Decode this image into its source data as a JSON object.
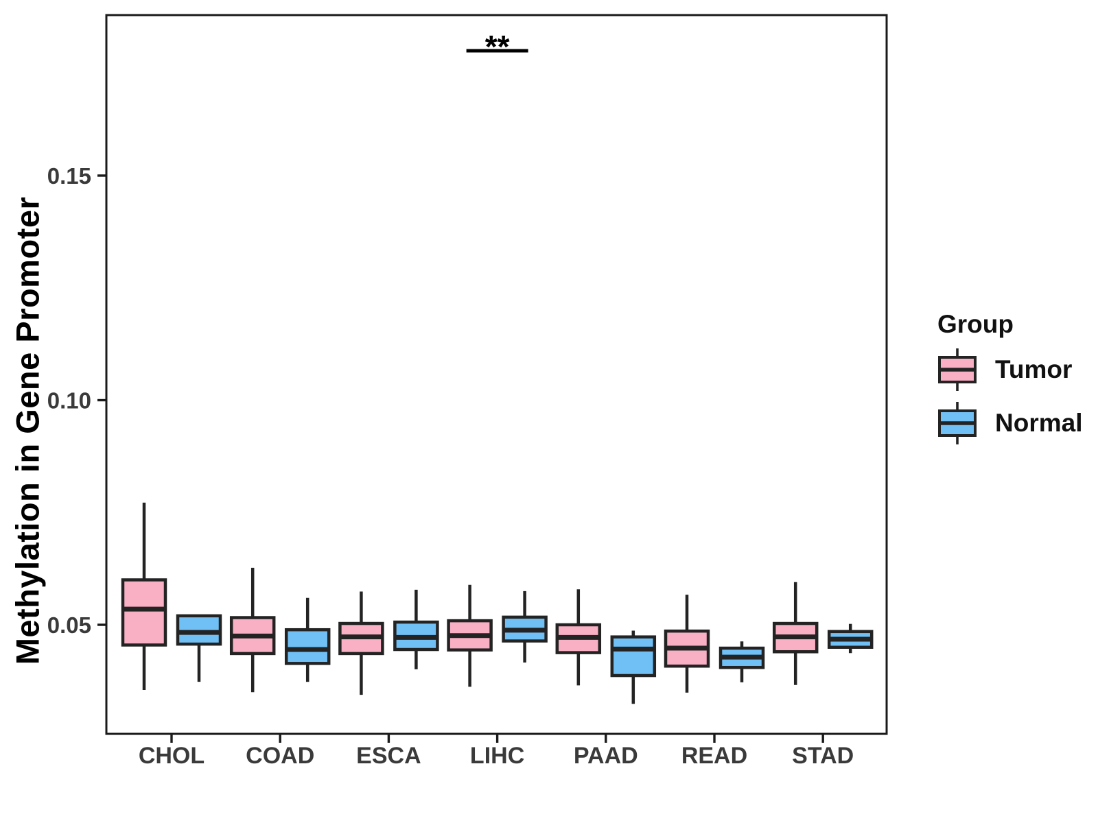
{
  "chart_data": {
    "type": "boxplot",
    "title": "",
    "ylabel": "Methylation in Gene Promoter",
    "xlabel": "",
    "categories": [
      "CHOL",
      "COAD",
      "ESCA",
      "LIHC",
      "PAAD",
      "READ",
      "STAD"
    ],
    "yticks": [
      0.05,
      0.1,
      0.15
    ],
    "ylim": [
      0.026,
      0.186
    ],
    "grid": false,
    "legend": {
      "title": "Group",
      "position": "right"
    },
    "significance": {
      "category": "LIHC",
      "label": "**"
    },
    "style": {
      "tumor_fill": "#F9AFC4",
      "normal_fill": "#70BFF5",
      "box_border": "#232323",
      "panel_border": "#1A1A1A",
      "axis_text": "#3A3A3A",
      "background": "#FFFFFF"
    },
    "series": [
      {
        "name": "Tumor",
        "color": "#F9AFC4",
        "boxes": [
          {
            "category": "CHOL",
            "whisker_low": 0.0355,
            "q1": 0.0455,
            "median": 0.0535,
            "q3": 0.06,
            "whisker_high": 0.0772
          },
          {
            "category": "COAD",
            "whisker_low": 0.035,
            "q1": 0.0436,
            "median": 0.0475,
            "q3": 0.0516,
            "whisker_high": 0.0627
          },
          {
            "category": "ESCA",
            "whisker_low": 0.0344,
            "q1": 0.0436,
            "median": 0.0473,
            "q3": 0.0503,
            "whisker_high": 0.0574
          },
          {
            "category": "LIHC",
            "whisker_low": 0.0362,
            "q1": 0.0444,
            "median": 0.0476,
            "q3": 0.0509,
            "whisker_high": 0.0589
          },
          {
            "category": "PAAD",
            "whisker_low": 0.0365,
            "q1": 0.0438,
            "median": 0.0472,
            "q3": 0.05,
            "whisker_high": 0.0579
          },
          {
            "category": "READ",
            "whisker_low": 0.0349,
            "q1": 0.0408,
            "median": 0.0448,
            "q3": 0.0486,
            "whisker_high": 0.0567
          },
          {
            "category": "STAD",
            "whisker_low": 0.0366,
            "q1": 0.044,
            "median": 0.0473,
            "q3": 0.0503,
            "whisker_high": 0.0595
          }
        ]
      },
      {
        "name": "Normal",
        "color": "#70BFF5",
        "boxes": [
          {
            "category": "CHOL",
            "whisker_low": 0.0373,
            "q1": 0.0457,
            "median": 0.0483,
            "q3": 0.052,
            "whisker_high": 0.052
          },
          {
            "category": "COAD",
            "whisker_low": 0.0373,
            "q1": 0.0414,
            "median": 0.0445,
            "q3": 0.0489,
            "whisker_high": 0.056
          },
          {
            "category": "ESCA",
            "whisker_low": 0.0401,
            "q1": 0.0445,
            "median": 0.0472,
            "q3": 0.0506,
            "whisker_high": 0.0578
          },
          {
            "category": "LIHC",
            "whisker_low": 0.0416,
            "q1": 0.0464,
            "median": 0.0488,
            "q3": 0.0517,
            "whisker_high": 0.0575
          },
          {
            "category": "PAAD",
            "whisker_low": 0.0324,
            "q1": 0.0387,
            "median": 0.0446,
            "q3": 0.0473,
            "whisker_high": 0.0487
          },
          {
            "category": "READ",
            "whisker_low": 0.0372,
            "q1": 0.0405,
            "median": 0.0428,
            "q3": 0.0448,
            "whisker_high": 0.0463
          },
          {
            "category": "STAD",
            "whisker_low": 0.0437,
            "q1": 0.045,
            "median": 0.0468,
            "q3": 0.0485,
            "whisker_high": 0.0502
          }
        ]
      }
    ]
  }
}
